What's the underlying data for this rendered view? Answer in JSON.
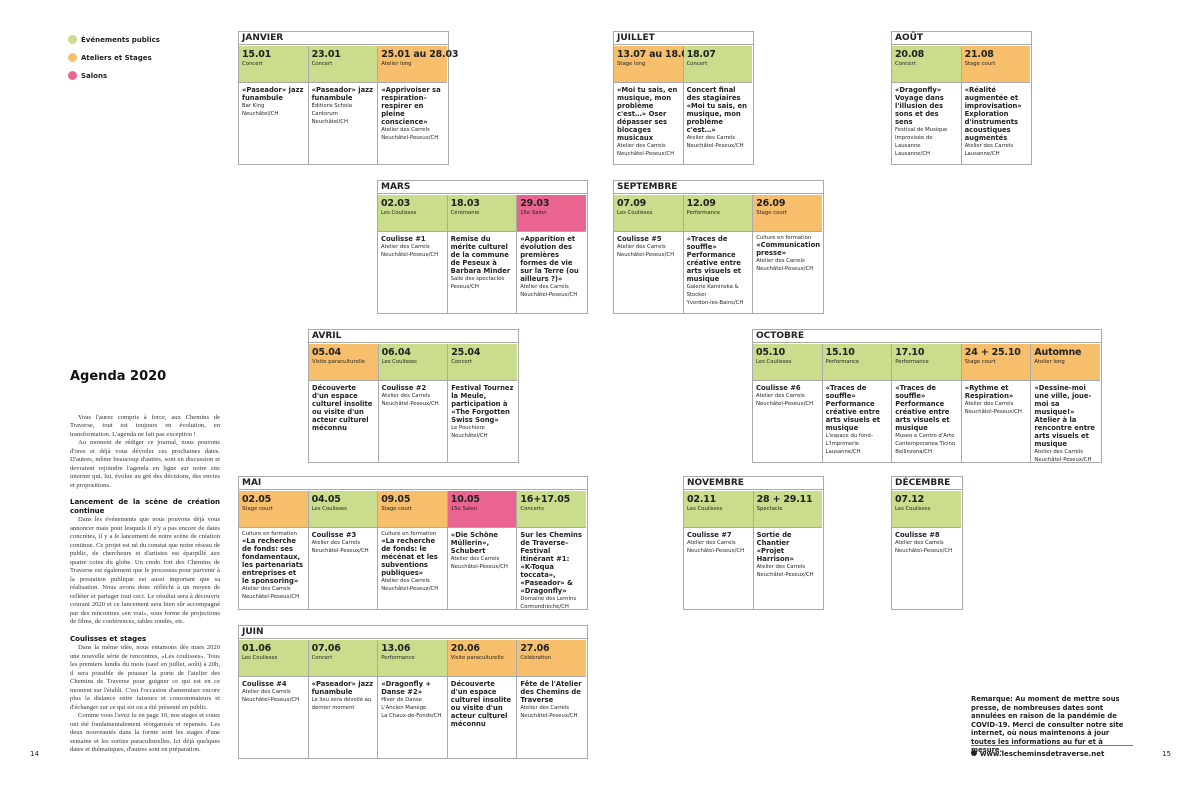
{
  "legend": [
    {
      "label": "Événements publics",
      "color": "#c9dd8c"
    },
    {
      "label": "Ateliers et Stages",
      "color": "#f7bf6b"
    },
    {
      "label": "Salons",
      "color": "#e9658f"
    }
  ],
  "article": {
    "title": "Agenda 2020",
    "lead": [
      "Vous l'aurez compris à force, aux Chemins de Traverse, tout est toujours en évolution, en transformation. L'agenda ne fait pas exception !",
      "Au moment de rédiger ce journal, nous pouvons d'ores et déjà vous dévoiler ces prochaines dates. D'autres, même beaucoup d'autres, sont en discussion et devraient rejoindre l'agenda en ligne sur notre site internet qui, lui, évolue au gré des décisions, des envies et propositions."
    ],
    "sections": [
      {
        "heading": "Lancement de la scène de création continue",
        "paragraphs": [
          "Dans les événements que nous pouvons déjà vous annoncer mais pour lesquels il n'y a pas encore de dates concrètes, il y a le lancement de notre scène de création continue. Ce projet est né du constat que notre réseau de public, de chercheurs et d'artistes est éparpillé aux quatre coins du globe. Un credo fort des Chemins de Traverse est également que le processus pour parvenir à la prestation publique est aussi important que sa réalisation. Nous avons donc réfléchi à un moyen de refléter et partager tout ceci. Le résultat sera à découvrir courant 2020 et ce lancement sera bien sûr accompagné par des rencontres «en vrai», sous forme de projections de films, de conférences, tables rondes, etc."
        ]
      },
      {
        "heading": "Coulisses et stages",
        "paragraphs": [
          "Dans la même idée, nous entamons dès mars 2020 une nouvelle série de rencontres, «Les coulisses». Tous les premiers lundis du mois (sauf en juillet, août) à 20h, il sera possible de pousser la porte de l'atelier des Chemins de Traverse pour guigner ce qui est en ce moment sur l'établi. C'est l'occasion d'amenuiser encore plus la distance entre faiseurs et consommateurs et d'échanger sur ce qui est ou a été présenté en public.",
          "Comme vous l'avez lu en page 10, nos stages et cours ont été fondamentalement réorganisés et repensés. Les deux nouveautés dans la forme sont les stages d'une semaine et les sorties paraculturelles. Ici déjà quelques dates et thématiques, d'autres sont en préparation."
        ]
      }
    ]
  },
  "months": [
    {
      "name": "JANVIER",
      "events": [
        {
          "date": "15.01",
          "type": "Concert",
          "color": "#c9dd8c",
          "title": "«Paseador» jazz funambule",
          "details": [
            "Bar King",
            "Neuchâtel/CH"
          ]
        },
        {
          "date": "23.01",
          "type": "Concert",
          "color": "#c9dd8c",
          "title": "«Paseador» jazz funambule",
          "details": [
            "Éditions Schola Cantorum",
            "Neuchâtel/CH"
          ]
        },
        {
          "date": "25.01 au 28.03",
          "type": "Atelier long",
          "color": "#f7bf6b",
          "title": "«Apprivoiser sa respiration– respirer en pleine conscience»",
          "details": [
            "Atelier des Carrels",
            "Neuchâtel-Peseux/CH"
          ]
        }
      ]
    },
    {
      "name": "JUILLET",
      "events": [
        {
          "date": "13.07 au 18.07",
          "type": "Stage long",
          "color": "#f7bf6b",
          "title": "«Moi tu sais, en musique, mon problème c'est…» Oser dépasser ses blocages musicaux",
          "details": [
            "Atelier des Carrels",
            "Neuchâtel-Peseux/CH"
          ]
        },
        {
          "date": "18.07",
          "type": "Concert",
          "color": "#c9dd8c",
          "title": "Concert final des stagiaires «Moi tu sais, en musique, mon problème c'est…»",
          "details": [
            "Atelier des Carrels",
            "Neuchâtel-Peseux/CH"
          ]
        }
      ]
    },
    {
      "name": "AOÛT",
      "events": [
        {
          "date": "20.08",
          "type": "Concert",
          "color": "#c9dd8c",
          "title": "«Dragonfly» Voyage dans l'illusion des sons et des sens",
          "details": [
            "Festival de Musique Improvisée de Lausanne",
            "Lausanne/CH"
          ]
        },
        {
          "date": "21.08",
          "type": "Stage court",
          "color": "#f7bf6b",
          "title": "«Réalité augmentée et improvisation» Exploration d'instruments acoustiques augmentés",
          "details": [
            "Atelier des Carrels",
            "Lausanne/CH"
          ]
        }
      ]
    },
    {
      "name": "MARS",
      "events": [
        {
          "date": "02.03",
          "type": "Les Coulisses",
          "color": "#c9dd8c",
          "title": "Coulisse #1",
          "details": [
            "Atelier des Carrels",
            "Neuchâtel-Peseux/CH"
          ]
        },
        {
          "date": "18.03",
          "type": "Cérémonie",
          "color": "#c9dd8c",
          "title": "Remise du mérite culturel de la commune de Peseux à Barbara Minder",
          "details": [
            "Salle des spectacles",
            "Peseux/CH"
          ]
        },
        {
          "date": "29.03",
          "type": "15e Salon",
          "color": "#e9658f",
          "title": "«Apparition et évolution des premières formes de vie sur la Terre (ou ailleurs ?)»",
          "details": [
            "Atelier des Carrels",
            "Neuchâtel-Peseux/CH"
          ]
        }
      ]
    },
    {
      "name": "SEPTEMBRE",
      "events": [
        {
          "date": "07.09",
          "type": "Les Coulisses",
          "color": "#c9dd8c",
          "title": "Coulisse #5",
          "details": [
            "Atelier des Carrels",
            "Neuchâtel-Peseux/CH"
          ]
        },
        {
          "date": "12.09",
          "type": "Performance",
          "color": "#c9dd8c",
          "title": "«Traces de souffle» Performance créative entre arts visuels et musique",
          "details": [
            "Galerie Kaminska & Stocker",
            "Yverdon-les-Bains/CH"
          ]
        },
        {
          "date": "26.09",
          "type": "Stage court",
          "color": "#f7bf6b",
          "pre": "Culture en formation",
          "title": "«Communication presse»",
          "details": [
            "Atelier des Carrels",
            "Neuchâtel-Peseux/CH"
          ]
        }
      ]
    },
    {
      "name": "AVRIL",
      "events": [
        {
          "date": "05.04",
          "type": "Visite paraculturelle",
          "color": "#f7bf6b",
          "title": "Découverte d'un espace culturel insolite ou visite d'un acteur culturel méconnu",
          "details": []
        },
        {
          "date": "06.04",
          "type": "Les Coulisses",
          "color": "#c9dd8c",
          "title": "Coulisse #2",
          "details": [
            "Atelier des Carrels",
            "Neuchâtel-Peseux/CH"
          ]
        },
        {
          "date": "25.04",
          "type": "Concert",
          "color": "#c9dd8c",
          "title": "Festival Tournez la Meule, participation à «The Forgotten Swiss Song»",
          "details": [
            "Le Pouchiere",
            "Neuchâtel/CH"
          ]
        }
      ]
    },
    {
      "name": "OCTOBRE",
      "events": [
        {
          "date": "05.10",
          "type": "Les Coulisses",
          "color": "#c9dd8c",
          "title": "Coulisse #6",
          "details": [
            "Atelier des Carrels",
            "Neuchâtel-Peseux/CH"
          ]
        },
        {
          "date": "15.10",
          "type": "Performance",
          "color": "#c9dd8c",
          "title": "«Traces de souffle» Performance créative entre arts visuels et musique",
          "details": [
            "L'espace du fond–L'Imprimerie",
            "Lausanne/CH"
          ]
        },
        {
          "date": "17.10",
          "type": "Performance",
          "color": "#c9dd8c",
          "title": "«Traces de souffle» Performance créative entre arts visuels et musique",
          "details": [
            "Museo e Centro d'Arte Contemporanea Ticino",
            "Bellinzona/CH"
          ]
        },
        {
          "date": "24 + 25.10",
          "type": "Stage court",
          "color": "#f7bf6b",
          "title": "«Rythme et Respiration»",
          "details": [
            "Atelier des Carrels",
            "Neuchâtel-Peseux/CH"
          ]
        },
        {
          "date": "Automne",
          "type": "Atelier long",
          "color": "#f7bf6b",
          "title": "«Dessine-moi une ville, joue-moi sa musique!» Atelier à la rencontre entre arts visuels et musique",
          "details": [
            "Atelier des Carrels",
            "Neuchâtel-Peseux/CH"
          ]
        }
      ]
    },
    {
      "name": "MAI",
      "events": [
        {
          "date": "02.05",
          "type": "Stage court",
          "color": "#f7bf6b",
          "pre": "Culture en formation",
          "title": "«La recherche de fonds: ses fondamentaux, les partenariats entreprises et le sponsoring»",
          "details": [
            "Atelier des Carrels",
            "Neuchâtel-Peseux/CH"
          ]
        },
        {
          "date": "04.05",
          "type": "Les Coulisses",
          "color": "#c9dd8c",
          "title": "Coulisse #3",
          "details": [
            "Atelier des Carrels",
            "Neuchâtel-Peseux/CH"
          ]
        },
        {
          "date": "09.05",
          "type": "Stage court",
          "color": "#f7bf6b",
          "pre": "Culture en formation",
          "title": "«La recherche de fonds: le mécénat et les subventions publiques»",
          "details": [
            "Atelier des Carrels",
            "Neuchâtel-Peseux/CH"
          ]
        },
        {
          "date": "10.05",
          "type": "15e Salon",
          "color": "#e9658f",
          "title": "«Die Schöne Müllerin», Schubert",
          "details": [
            "Atelier des Carrels",
            "Neuchâtel-Peseux/CH"
          ]
        },
        {
          "date": "16+17.05",
          "type": "Concerts",
          "color": "#c9dd8c",
          "title": "Sur les Chemins de Traverse– Festival itinérant #1: «K-Toqua toccata», «Paseador» & «Dragonfly»",
          "details": [
            "Domaine des Lernins",
            "Cormondrèche/CH"
          ]
        }
      ]
    },
    {
      "name": "NOVEMBRE",
      "events": [
        {
          "date": "02.11",
          "type": "Les Coulisses",
          "color": "#c9dd8c",
          "title": "Coulisse #7",
          "details": [
            "Atelier des Carrels",
            "Neuchâtel-Peseux/CH"
          ]
        },
        {
          "date": "28 + 29.11",
          "type": "Spectacle",
          "color": "#c9dd8c",
          "title": "Sortie de Chantier «Projet Harrison»",
          "details": [
            "Atelier des Carrels",
            "Neuchâtel-Peseux/CH"
          ]
        }
      ]
    },
    {
      "name": "DÉCEMBRE",
      "events": [
        {
          "date": "07.12",
          "type": "Les Coulisses",
          "color": "#c9dd8c",
          "title": "Coulisse #8",
          "details": [
            "Atelier des Carrels",
            "Neuchâtel-Peseux/CH"
          ]
        }
      ]
    },
    {
      "name": "JUIN",
      "events": [
        {
          "date": "01.06",
          "type": "Les Coulisses",
          "color": "#c9dd8c",
          "title": "Coulisse #4",
          "details": [
            "Atelier des Carrels",
            "Neuchâtel-Peseux/CH"
          ]
        },
        {
          "date": "07.06",
          "type": "Concert",
          "color": "#c9dd8c",
          "title": "«Paseador» jazz funambule",
          "details": [
            "Le lieu sera dévoilé au dernier moment"
          ]
        },
        {
          "date": "13.06",
          "type": "Performance",
          "color": "#c9dd8c",
          "title": "«Dragonfly + Danse #2»",
          "details": [
            "Hiver de Danse",
            "L'Ancien Manège",
            "La Chaux-de-Fonds/CH"
          ]
        },
        {
          "date": "20.06",
          "type": "Visite paraculturelle",
          "color": "#f7bf6b",
          "title": "Découverte d'un espace culturel insolite ou visite d'un acteur culturel méconnu",
          "details": []
        },
        {
          "date": "27.06",
          "type": "Célébration",
          "color": "#f7bf6b",
          "title": "Fête de l'Atelier des Chemins de Traverse",
          "details": [
            "Atelier des Carrels",
            "Neuchâtel-Peseux/CH"
          ]
        }
      ]
    }
  ],
  "remark": "Remarque: Au moment de mettre sous presse, de nombreuses dates sont annulées en raison de la pandémie de COVID-19. Merci de consulter notre site internet, où nous maintenons à jour toutes les informations au fur et à mesure.",
  "website": "www.lescheminsdetraverse.net",
  "pages": [
    "14",
    "15"
  ]
}
